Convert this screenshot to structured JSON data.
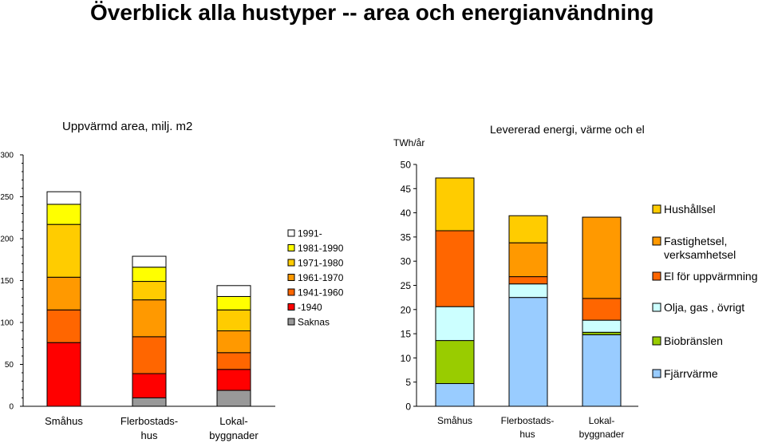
{
  "page_title": "Överblick alla hustyper -- area och energianvändning",
  "chart_data": [
    {
      "type": "bar",
      "stacked": true,
      "title": "Uppvärmd area, milj. m2",
      "xlabel": "",
      "ylabel": "",
      "ylim": [
        0,
        300
      ],
      "ytick_labels": [
        "0",
        "50",
        "100",
        "150",
        "200",
        "250",
        "300"
      ],
      "categories": [
        "Småhus",
        "Flerbostads-\nhus",
        "Lokal-\nbyggnader"
      ],
      "series": [
        {
          "name": "Saknas",
          "color": "#999999",
          "values": [
            0,
            10,
            19
          ]
        },
        {
          "name": "-1940",
          "color": "#ff0000",
          "values": [
            76,
            29,
            25
          ]
        },
        {
          "name": "1941-1960",
          "color": "#ff6600",
          "values": [
            39,
            44,
            20
          ]
        },
        {
          "name": "1961-1970",
          "color": "#ff9900",
          "values": [
            39,
            44,
            26
          ]
        },
        {
          "name": "1971-1980",
          "color": "#ffcc00",
          "values": [
            63,
            22,
            25
          ]
        },
        {
          "name": "1981-1990",
          "color": "#ffff00",
          "values": [
            24,
            17,
            16
          ]
        },
        {
          "name": "1991-",
          "color": "#ffffff",
          "values": [
            15,
            13,
            13
          ]
        }
      ],
      "legend": "right"
    },
    {
      "type": "bar",
      "stacked": true,
      "title": "Levererad energi, värme och el",
      "xlabel": "",
      "ylabel": "TWh/år",
      "ylim": [
        0,
        50
      ],
      "ytick_labels": [
        "0",
        "5",
        "10",
        "15",
        "20",
        "25",
        "30",
        "35",
        "40",
        "45",
        "50"
      ],
      "categories": [
        "Småhus",
        "Flerbostads-\nhus",
        "Lokal-\nbyggnader"
      ],
      "series": [
        {
          "name": "Fjärrvärme",
          "color": "#99ccff",
          "values": [
            4.7,
            22.5,
            14.8
          ]
        },
        {
          "name": "Biobränslen",
          "color": "#99cc00",
          "values": [
            8.9,
            0,
            0.5
          ]
        },
        {
          "name": "Olja, gas , övrigt",
          "color": "#ccffff",
          "values": [
            7.0,
            2.8,
            2.5
          ]
        },
        {
          "name": "El för uppvärmning",
          "color": "#ff6600",
          "values": [
            15.7,
            1.5,
            4.5
          ]
        },
        {
          "name": "Fastighetsel, verksamhetsel",
          "color": "#ff9900",
          "values": [
            0,
            7.0,
            16.8
          ]
        },
        {
          "name": "Hushållsel",
          "color": "#ffcc00",
          "values": [
            10.9,
            5.6,
            0
          ]
        }
      ],
      "legend": "right"
    }
  ]
}
